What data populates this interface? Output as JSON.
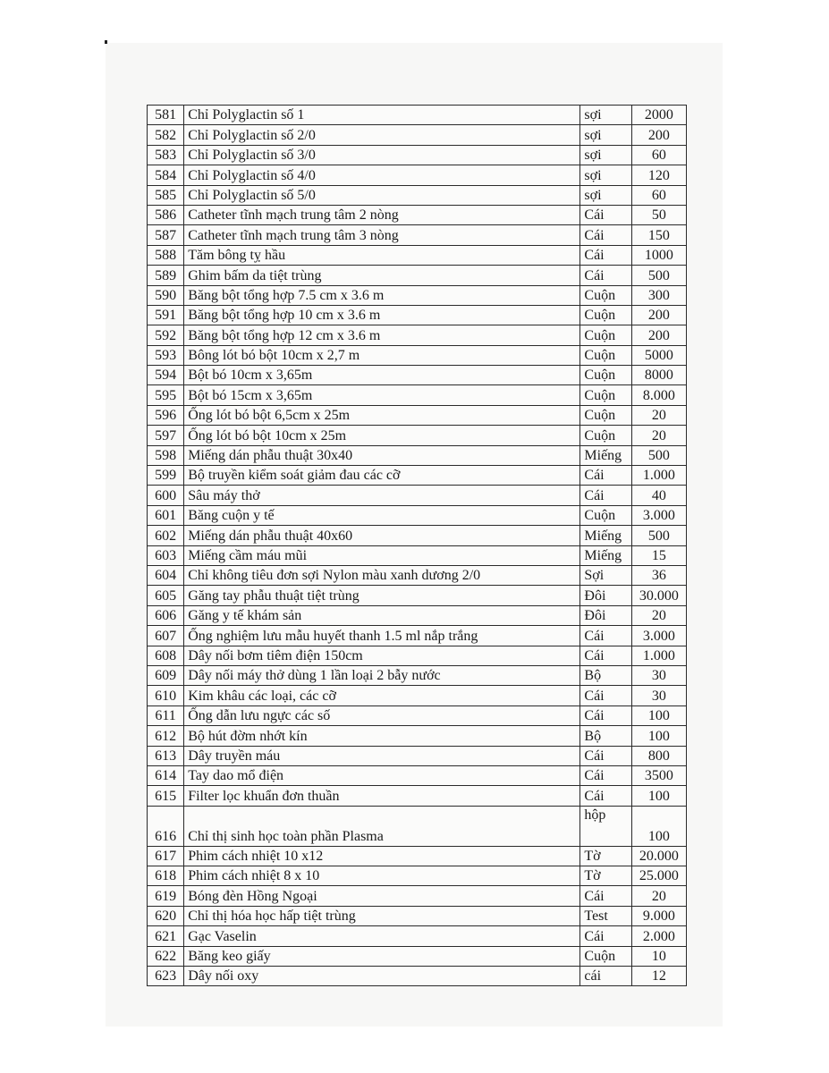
{
  "table": {
    "rows": [
      {
        "no": "581",
        "name": "Chỉ Polyglactin số 1",
        "unit": "sợi",
        "qty": "2000"
      },
      {
        "no": "582",
        "name": "Chỉ Polyglactin số 2/0",
        "unit": "sợi",
        "qty": "200"
      },
      {
        "no": "583",
        "name": "Chỉ Polyglactin số 3/0",
        "unit": "sợi",
        "qty": "60"
      },
      {
        "no": "584",
        "name": "Chỉ Polyglactin số 4/0",
        "unit": "sợi",
        "qty": "120"
      },
      {
        "no": "585",
        "name": "Chỉ Polyglactin số 5/0",
        "unit": "sợi",
        "qty": "60"
      },
      {
        "no": "586",
        "name": "Catheter tĩnh mạch trung tâm 2 nòng",
        "unit": "Cái",
        "qty": "50"
      },
      {
        "no": "587",
        "name": "Catheter tĩnh mạch trung tâm 3 nòng",
        "unit": "Cái",
        "qty": "150"
      },
      {
        "no": "588",
        "name": "Tăm bông tỵ hầu",
        "unit": "Cái",
        "qty": "1000"
      },
      {
        "no": "589",
        "name": "Ghim bấm da tiệt trùng",
        "unit": "Cái",
        "qty": "500"
      },
      {
        "no": "590",
        "name": "Băng bột tổng hợp 7.5 cm x 3.6 m",
        "unit": "Cuộn",
        "qty": "300"
      },
      {
        "no": "591",
        "name": "Băng bột tổng hợp 10 cm x 3.6 m",
        "unit": "Cuộn",
        "qty": "200"
      },
      {
        "no": "592",
        "name": "Băng bột tổng hợp 12 cm x 3.6 m",
        "unit": "Cuộn",
        "qty": "200"
      },
      {
        "no": "593",
        "name": "Bông lót bó bột 10cm x 2,7 m",
        "unit": "Cuộn",
        "qty": "5000"
      },
      {
        "no": "594",
        "name": "Bột bó 10cm x 3,65m",
        "unit": "Cuộn",
        "qty": "8000"
      },
      {
        "no": "595",
        "name": "Bột bó 15cm x 3,65m",
        "unit": "Cuộn",
        "qty": "8.000"
      },
      {
        "no": "596",
        "name": "Ống lót bó bột  6,5cm x 25m",
        "unit": "Cuộn",
        "qty": "20"
      },
      {
        "no": "597",
        "name": "Ống lót bó bột 10cm x 25m",
        "unit": "Cuộn",
        "qty": "20"
      },
      {
        "no": "598",
        "name": "Miếng dán phẫu thuật 30x40",
        "unit": "Miếng",
        "qty": "500"
      },
      {
        "no": "599",
        "name": "Bộ truyền kiểm soát giảm đau các cỡ",
        "unit": "Cái",
        "qty": "1.000"
      },
      {
        "no": "600",
        "name": "Sâu máy thở",
        "unit": "Cái",
        "qty": "40"
      },
      {
        "no": "601",
        "name": "Băng cuộn y tế",
        "unit": "Cuộn",
        "qty": "3.000"
      },
      {
        "no": "602",
        "name": "Miếng dán phẫu thuật 40x60",
        "unit": "Miếng",
        "qty": "500"
      },
      {
        "no": "603",
        "name": "Miếng cầm máu mũi",
        "unit": "Miếng",
        "qty": "15"
      },
      {
        "no": "604",
        "name": "Chỉ không tiêu đơn sợi Nylon màu xanh dương 2/0",
        "unit": "Sợi",
        "qty": "36"
      },
      {
        "no": "605",
        "name": "Găng tay phẫu thuật tiệt trùng",
        "unit": "Đôi",
        "qty": "30.000"
      },
      {
        "no": "606",
        "name": "Găng y tế khám sản",
        "unit": "Đôi",
        "qty": "20"
      },
      {
        "no": "607",
        "name": "Ống nghiệm lưu mẫu huyết thanh 1.5 ml nắp trắng",
        "unit": "Cái",
        "qty": "3.000"
      },
      {
        "no": "608",
        "name": "Dây nối bơm tiêm điện 150cm",
        "unit": "Cái",
        "qty": "1.000"
      },
      {
        "no": "609",
        "name": "Dây nối máy thở dùng 1 lần loại 2 bẫy nước",
        "unit": "Bộ",
        "qty": "30"
      },
      {
        "no": "610",
        "name": "Kim khâu các loại, các cỡ",
        "unit": "Cái",
        "qty": "30"
      },
      {
        "no": "611",
        "name": "Ống dẫn lưu ngực các số",
        "unit": "Cái",
        "qty": "100"
      },
      {
        "no": "612",
        "name": "Bộ hút đờm nhớt kín",
        "unit": "Bộ",
        "qty": "100"
      },
      {
        "no": "613",
        "name": "Dây truyền máu",
        "unit": "Cái",
        "qty": "800"
      },
      {
        "no": "614",
        "name": "Tay dao mổ điện",
        "unit": "Cái",
        "qty": "3500"
      },
      {
        "no": "615",
        "name": "Filter lọc khuẩn đơn thuần",
        "unit": "Cái",
        "qty": "100"
      },
      {
        "no": "616",
        "name": "Chỉ thị sinh học toàn phần Plasma",
        "unit": "hộp",
        "qty": "100"
      },
      {
        "no": "617",
        "name": "Phim cách nhiệt 10 x12",
        "unit": "Tờ",
        "qty": "20.000"
      },
      {
        "no": "618",
        "name": "Phim cách nhiệt 8 x 10",
        "unit": "Tờ",
        "qty": "25.000"
      },
      {
        "no": "619",
        "name": "Bóng đèn Hồng Ngoại",
        "unit": "Cái",
        "qty": "20"
      },
      {
        "no": "620",
        "name": "Chỉ thị hóa học hấp tiệt trùng",
        "unit": "Test",
        "qty": "9.000"
      },
      {
        "no": "621",
        "name": "Gạc Vaselin",
        "unit": "Cái",
        "qty": "2.000"
      },
      {
        "no": "622",
        "name": "Băng keo giấy",
        "unit": "Cuộn",
        "qty": "10"
      },
      {
        "no": "623",
        "name": "Dây nối oxy",
        "unit": "cái",
        "qty": "12"
      }
    ]
  }
}
